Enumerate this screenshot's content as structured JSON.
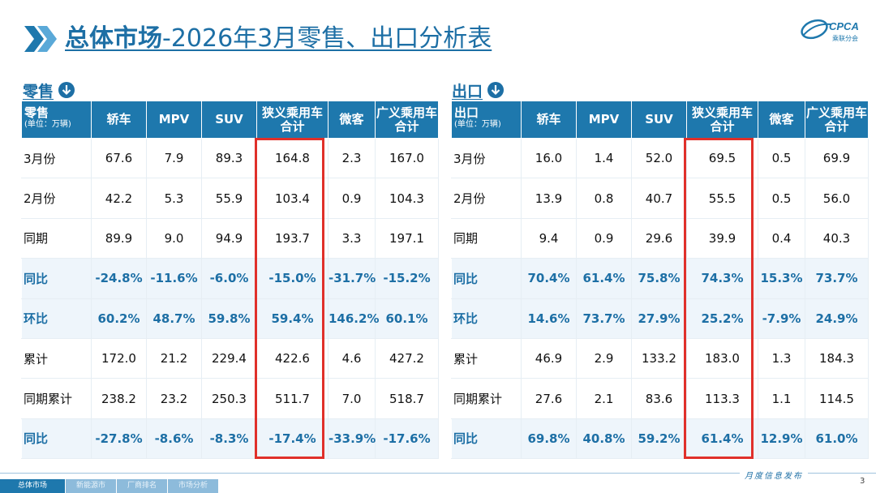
{
  "header": {
    "title_main": "总体市场",
    "title_rest": "-2026年3月零售、出口分析表",
    "logo_text": "CPCA",
    "logo_sub": "乘联分会"
  },
  "retail": {
    "section_label": "零售",
    "corner_main": "零售",
    "corner_unit": "(单位：万辆)",
    "columns": [
      "轿车",
      "MPV",
      "SUV",
      "狭义乘用车合计",
      "微客",
      "广义乘用车合计"
    ],
    "rows": [
      {
        "label": "3月份",
        "values": [
          "67.6",
          "7.9",
          "89.3",
          "164.8",
          "2.3",
          "167.0"
        ]
      },
      {
        "label": "2月份",
        "values": [
          "42.2",
          "5.3",
          "55.9",
          "103.4",
          "0.9",
          "104.3"
        ]
      },
      {
        "label": "同期",
        "values": [
          "89.9",
          "9.0",
          "94.9",
          "193.7",
          "3.3",
          "197.1"
        ]
      },
      {
        "label": "同比",
        "values": [
          "-24.8%",
          "-11.6%",
          "-6.0%",
          "-15.0%",
          "-31.7%",
          "-15.2%"
        ]
      },
      {
        "label": "环比",
        "values": [
          "60.2%",
          "48.7%",
          "59.8%",
          "59.4%",
          "146.2%",
          "60.1%"
        ]
      },
      {
        "label": "累计",
        "values": [
          "172.0",
          "21.2",
          "229.4",
          "422.6",
          "4.6",
          "427.2"
        ]
      },
      {
        "label": "同期累计",
        "values": [
          "238.2",
          "23.2",
          "250.3",
          "511.7",
          "7.0",
          "518.7"
        ]
      },
      {
        "label": "同比",
        "values": [
          "-27.8%",
          "-8.6%",
          "-8.3%",
          "-17.4%",
          "-33.9%",
          "-17.6%"
        ]
      }
    ]
  },
  "export": {
    "section_label": "出口",
    "corner_main": "出口",
    "corner_unit": "(单位：万辆)",
    "columns": [
      "轿车",
      "MPV",
      "SUV",
      "狭义乘用车合计",
      "微客",
      "广义乘用车合计"
    ],
    "rows": [
      {
        "label": "3月份",
        "values": [
          "16.0",
          "1.4",
          "52.0",
          "69.5",
          "0.5",
          "69.9"
        ]
      },
      {
        "label": "2月份",
        "values": [
          "13.9",
          "0.8",
          "40.7",
          "55.5",
          "0.5",
          "56.0"
        ]
      },
      {
        "label": "同期",
        "values": [
          "9.4",
          "0.9",
          "29.6",
          "39.9",
          "0.4",
          "40.3"
        ]
      },
      {
        "label": "同比",
        "values": [
          "70.4%",
          "61.4%",
          "75.8%",
          "74.3%",
          "15.3%",
          "73.7%"
        ]
      },
      {
        "label": "环比",
        "values": [
          "14.6%",
          "73.7%",
          "27.9%",
          "25.2%",
          "-7.9%",
          "24.9%"
        ]
      },
      {
        "label": "累计",
        "values": [
          "46.9",
          "2.9",
          "133.2",
          "183.0",
          "1.3",
          "184.3"
        ]
      },
      {
        "label": "同期累计",
        "values": [
          "27.6",
          "2.1",
          "83.6",
          "113.3",
          "1.1",
          "114.5"
        ]
      },
      {
        "label": "同比",
        "values": [
          "69.8%",
          "40.8%",
          "59.2%",
          "61.4%",
          "12.9%",
          "61.0%"
        ]
      }
    ]
  },
  "footer": {
    "monthly_label": "月度信息发布",
    "page_number": "3",
    "nav": [
      "总体市场",
      "新能源市场",
      "厂商排名",
      "市场分析"
    ]
  },
  "colors": {
    "primary": "#1e78ad",
    "highlight": "#e0302a",
    "accent_text": "#1d6fa5"
  }
}
